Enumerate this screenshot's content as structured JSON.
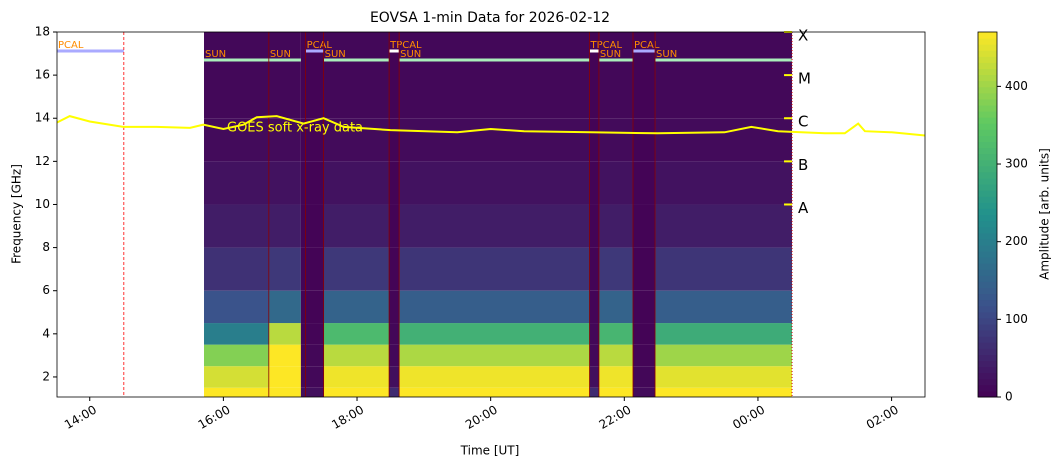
{
  "chart_data": {
    "type": "spectrogram",
    "title": "EOVSA 1-min Data for 2026-02-12",
    "xlabel": "Time [UT]",
    "ylabel": "Frequency [GHz]",
    "xlim": [
      13.51,
      26.5
    ],
    "xticks": [
      {
        "value": 14,
        "label": "14:00"
      },
      {
        "value": 16,
        "label": "16:00"
      },
      {
        "value": 18,
        "label": "18:00"
      },
      {
        "value": 20,
        "label": "20:00"
      },
      {
        "value": 22,
        "label": "22:00"
      },
      {
        "value": 24,
        "label": "00:00"
      },
      {
        "value": 26,
        "label": "02:00"
      }
    ],
    "ylim": [
      1.07,
      18
    ],
    "yticks": [
      2,
      4,
      6,
      8,
      10,
      12,
      14,
      16,
      18
    ],
    "colormap": "viridis",
    "colorbar": {
      "label": "Amplitude [arb. units]",
      "lim": [
        0,
        470
      ],
      "ticks": [
        0,
        100,
        200,
        300,
        400
      ]
    },
    "spectrogram": {
      "time_edges": [
        15.71,
        16.68,
        17.16,
        17.5,
        18.48,
        18.63,
        21.48,
        21.62,
        22.13,
        22.46,
        24.51
      ],
      "freq_edges": [
        1.07,
        1.5,
        2.5,
        3.5,
        4.5,
        6,
        8,
        10,
        12,
        14,
        18
      ],
      "amplitude": [
        [
          470,
          440,
          380,
          200,
          120,
          70,
          40,
          25,
          15,
          10
        ],
        [
          470,
          470,
          470,
          420,
          160,
          80,
          40,
          25,
          15,
          10
        ],
        [
          20,
          10,
          8,
          6,
          5,
          5,
          5,
          5,
          5,
          5
        ],
        [
          470,
          460,
          420,
          320,
          150,
          80,
          40,
          25,
          15,
          10
        ],
        [
          60,
          20,
          10,
          8,
          6,
          5,
          5,
          5,
          5,
          5
        ],
        [
          470,
          460,
          410,
          300,
          140,
          75,
          40,
          25,
          15,
          10
        ],
        [
          60,
          20,
          10,
          8,
          6,
          5,
          5,
          5,
          5,
          5
        ],
        [
          470,
          460,
          420,
          310,
          150,
          80,
          40,
          25,
          15,
          10
        ],
        [
          15,
          8,
          6,
          5,
          5,
          5,
          5,
          5,
          5,
          5
        ],
        [
          470,
          450,
          400,
          290,
          140,
          75,
          40,
          25,
          15,
          10
        ]
      ]
    },
    "scans": [
      {
        "label": "PCAL",
        "start": 13.51,
        "end": 14.51
      },
      {
        "label": "SUN",
        "start": 15.71,
        "end": 16.68
      },
      {
        "label": "SUN",
        "start": 16.68,
        "end": 17.16
      },
      {
        "label": "PCAL",
        "start": 17.23,
        "end": 17.5
      },
      {
        "label": "SUN",
        "start": 17.5,
        "end": 18.48
      },
      {
        "label": "TPCAL",
        "start": 18.48,
        "end": 18.63
      },
      {
        "label": "SUN",
        "start": 18.63,
        "end": 21.48
      },
      {
        "label": "TPCAL",
        "start": 21.48,
        "end": 21.62
      },
      {
        "label": "SUN",
        "start": 21.62,
        "end": 22.13
      },
      {
        "label": "PCAL",
        "start": 22.13,
        "end": 22.46
      },
      {
        "label": "SUN",
        "start": 22.46,
        "end": 24.51
      }
    ],
    "scan_colors": {
      "PCAL": "#aaaaff",
      "TPCAL": "#ffffff",
      "SUN": "#aaeebb"
    },
    "goes": {
      "name": "GOES soft x-ray data",
      "color": "#ffff00",
      "x": [
        13.51,
        13.7,
        14,
        14.5,
        15,
        15.5,
        15.7,
        16,
        16.3,
        16.5,
        16.8,
        17.2,
        17.5,
        17.8,
        18.5,
        19.5,
        20,
        20.5,
        21.5,
        22.5,
        23.5,
        23.9,
        24.3,
        25,
        25.3,
        25.5,
        25.6,
        26,
        26.5
      ],
      "values": [
        13.8,
        14.1,
        13.85,
        13.6,
        13.6,
        13.55,
        13.7,
        13.5,
        13.7,
        14.05,
        14.1,
        13.75,
        14.0,
        13.6,
        13.45,
        13.35,
        13.5,
        13.4,
        13.35,
        13.3,
        13.35,
        13.6,
        13.4,
        13.3,
        13.3,
        13.75,
        13.4,
        13.35,
        13.2
      ],
      "classes": [
        {
          "label": "A",
          "value": 10
        },
        {
          "label": "B",
          "value": 12
        },
        {
          "label": "C",
          "value": 14
        },
        {
          "label": "M",
          "value": 16
        },
        {
          "label": "X",
          "value": 18
        }
      ]
    }
  }
}
